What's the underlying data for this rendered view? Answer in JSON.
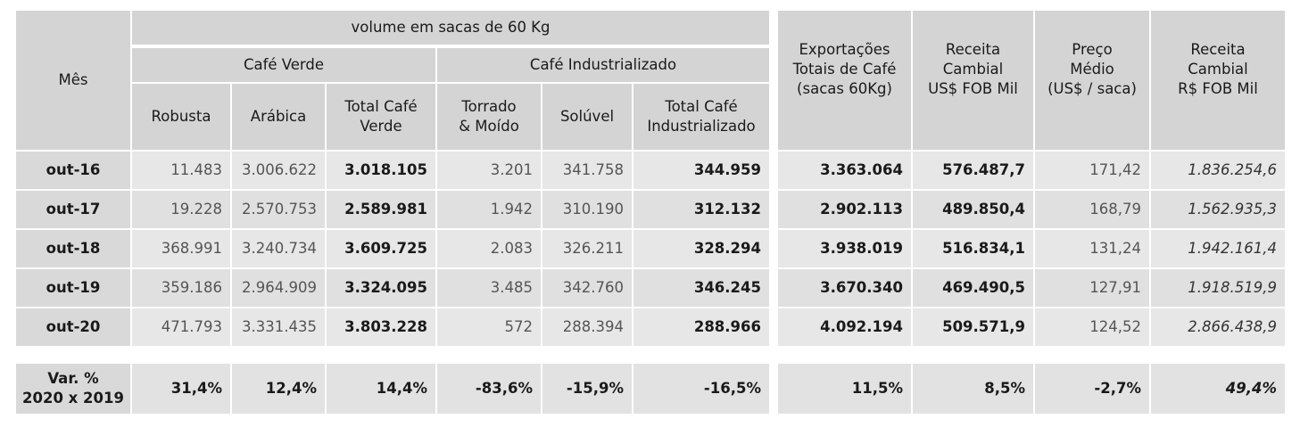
{
  "header": {
    "mes": "Mês",
    "volume": "volume em sacas de 60 Kg",
    "cafe_verde": "Café Verde",
    "cafe_industrializado": "Café Industrializado",
    "robusta": "Robusta",
    "arabica": "Arábica",
    "total_verde": "Total Café\nVerde",
    "torrado": "Torrado\n& Moído",
    "soluvel": "Solúvel",
    "total_ind": "Total Café\nIndustrializado",
    "exportacoes": "Exportações\nTotais de Café\n(sacas 60Kg)",
    "receita_usd": "Receita\nCambial\nUS$ FOB Mil",
    "preco": "Preço\nMédio\n(US$ / saca)",
    "receita_brl": "Receita\nCambial\nR$ FOB Mil"
  },
  "rows": [
    {
      "mes": "out-16",
      "robusta": "11.483",
      "arabica": "3.006.622",
      "total_verde": "3.018.105",
      "torrado": "3.201",
      "soluvel": "341.758",
      "total_ind": "344.959",
      "exportacoes": "3.363.064",
      "receita_usd": "576.487,7",
      "preco": "171,42",
      "receita_brl": "1.836.254,6"
    },
    {
      "mes": "out-17",
      "robusta": "19.228",
      "arabica": "2.570.753",
      "total_verde": "2.589.981",
      "torrado": "1.942",
      "soluvel": "310.190",
      "total_ind": "312.132",
      "exportacoes": "2.902.113",
      "receita_usd": "489.850,4",
      "preco": "168,79",
      "receita_brl": "1.562.935,3"
    },
    {
      "mes": "out-18",
      "robusta": "368.991",
      "arabica": "3.240.734",
      "total_verde": "3.609.725",
      "torrado": "2.083",
      "soluvel": "326.211",
      "total_ind": "328.294",
      "exportacoes": "3.938.019",
      "receita_usd": "516.834,1",
      "preco": "131,24",
      "receita_brl": "1.942.161,4"
    },
    {
      "mes": "out-19",
      "robusta": "359.186",
      "arabica": "2.964.909",
      "total_verde": "3.324.095",
      "torrado": "3.485",
      "soluvel": "342.760",
      "total_ind": "346.245",
      "exportacoes": "3.670.340",
      "receita_usd": "469.490,5",
      "preco": "127,91",
      "receita_brl": "1.918.519,9"
    },
    {
      "mes": "out-20",
      "robusta": "471.793",
      "arabica": "3.331.435",
      "total_verde": "3.803.228",
      "torrado": "572",
      "soluvel": "288.394",
      "total_ind": "288.966",
      "exportacoes": "4.092.194",
      "receita_usd": "509.571,9",
      "preco": "124,52",
      "receita_brl": "2.866.438,9"
    }
  ],
  "variation": {
    "label": "Var. %\n2020 x 2019",
    "robusta": "31,4%",
    "arabica": "12,4%",
    "total_verde": "14,4%",
    "torrado": "-83,6%",
    "soluvel": "-15,9%",
    "total_ind": "-16,5%",
    "exportacoes": "11,5%",
    "receita_usd": "8,5%",
    "preco": "-2,7%",
    "receita_brl": "49,4%"
  }
}
